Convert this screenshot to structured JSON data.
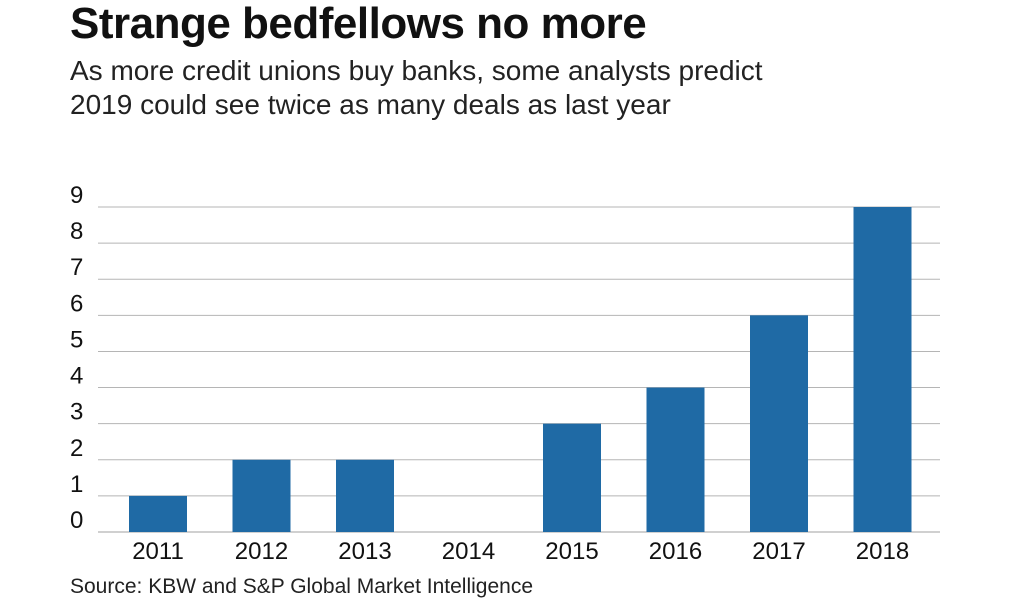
{
  "chart_data": {
    "type": "bar",
    "title": "Strange bedfellows no more",
    "subtitle_lines": [
      "As more credit unions buy banks, some analysts predict",
      "2019 could see twice as many deals as last year"
    ],
    "categories": [
      "2011",
      "2012",
      "2013",
      "2014",
      "2015",
      "2016",
      "2017",
      "2018"
    ],
    "values": [
      1,
      2,
      2,
      0,
      3,
      4,
      6,
      9
    ],
    "ylim": [
      0,
      9
    ],
    "yticks": [
      0,
      1,
      2,
      3,
      4,
      5,
      6,
      7,
      8,
      9
    ],
    "xlabel": "",
    "ylabel": "",
    "grid": true,
    "bar_color": "#1f6aa5",
    "grid_color": "#b5b5b5",
    "source": "Source: KBW and S&P Global Market Intelligence"
  }
}
